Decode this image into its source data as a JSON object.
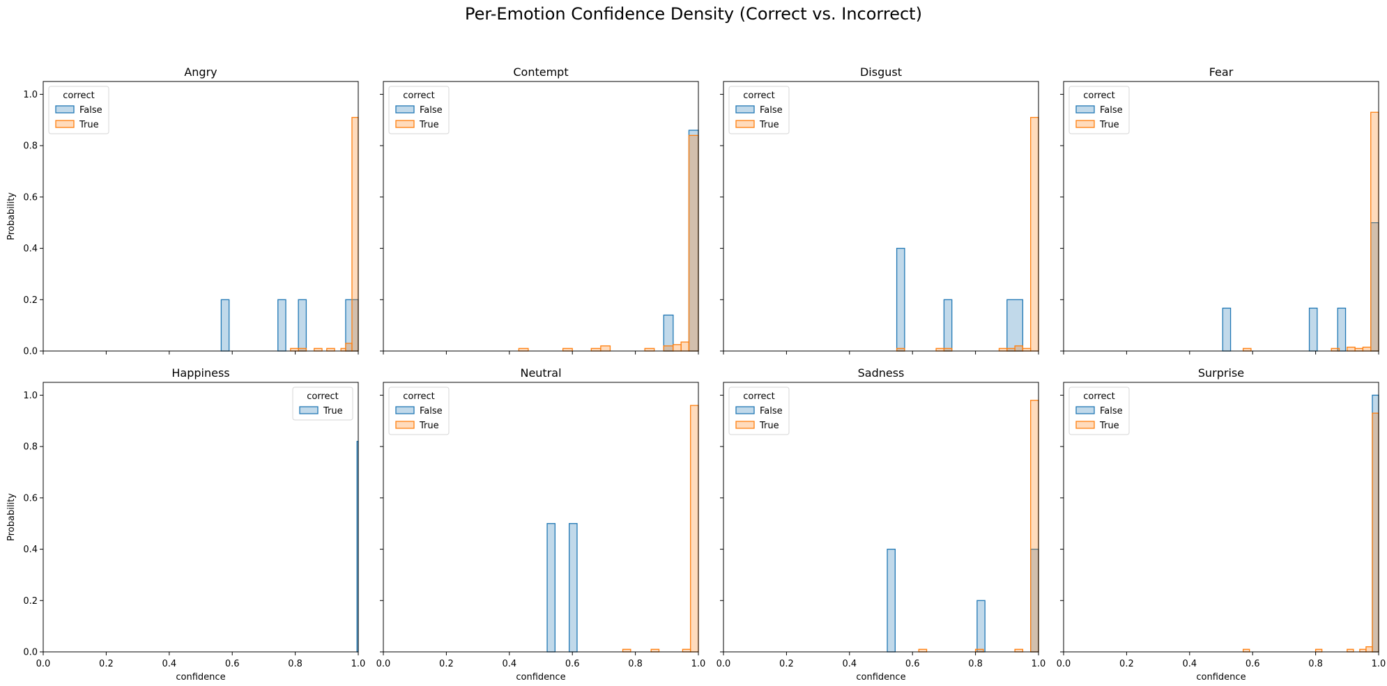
{
  "figure": {
    "title": "Per-Emotion Confidence Density (Correct vs. Incorrect)"
  },
  "colors": {
    "False": "#1f77b4",
    "True": "#ff7f0e"
  },
  "chart_data": [
    {
      "type": "histogram-step",
      "title": "Angry",
      "xlabel": "",
      "ylabel": "Probability",
      "xlim": [
        0,
        1
      ],
      "ylim": [
        0,
        1.05
      ],
      "xticks": [],
      "yticks": [
        "0.0",
        "0.2",
        "0.4",
        "0.6",
        "0.8",
        "1.0"
      ],
      "legend": {
        "title": "correct",
        "position": "upper-left",
        "entries": [
          "False",
          "True"
        ]
      },
      "series": [
        {
          "name": "False",
          "bins": [
            [
              0.565,
              0.59,
              0.2
            ],
            [
              0.745,
              0.77,
              0.2
            ],
            [
              0.81,
              0.835,
              0.2
            ],
            [
              0.96,
              1.0,
              0.2
            ]
          ]
        },
        {
          "name": "True",
          "bins": [
            [
              0.785,
              0.81,
              0.01
            ],
            [
              0.81,
              0.835,
              0.01
            ],
            [
              0.86,
              0.885,
              0.01
            ],
            [
              0.9,
              0.925,
              0.01
            ],
            [
              0.945,
              0.96,
              0.01
            ],
            [
              0.96,
              0.98,
              0.03
            ],
            [
              0.98,
              1.0,
              0.91
            ]
          ]
        }
      ]
    },
    {
      "type": "histogram-step",
      "title": "Contempt",
      "xlabel": "",
      "ylabel": "",
      "xlim": [
        0,
        1
      ],
      "ylim": [
        0,
        1.05
      ],
      "xticks": [],
      "yticks": [],
      "legend": {
        "title": "correct",
        "position": "upper-left",
        "entries": [
          "False",
          "True"
        ]
      },
      "series": [
        {
          "name": "False",
          "bins": [
            [
              0.89,
              0.92,
              0.14
            ],
            [
              0.97,
              1.0,
              0.86
            ]
          ]
        },
        {
          "name": "True",
          "bins": [
            [
              0.43,
              0.46,
              0.01
            ],
            [
              0.57,
              0.6,
              0.01
            ],
            [
              0.66,
              0.69,
              0.01
            ],
            [
              0.69,
              0.72,
              0.02
            ],
            [
              0.83,
              0.86,
              0.01
            ],
            [
              0.89,
              0.92,
              0.02
            ],
            [
              0.92,
              0.945,
              0.025
            ],
            [
              0.945,
              0.97,
              0.035
            ],
            [
              0.97,
              1.0,
              0.84
            ]
          ]
        }
      ]
    },
    {
      "type": "histogram-step",
      "title": "Disgust",
      "xlabel": "",
      "ylabel": "",
      "xlim": [
        0,
        1
      ],
      "ylim": [
        0,
        1.05
      ],
      "xticks": [],
      "yticks": [],
      "legend": {
        "title": "correct",
        "position": "upper-left",
        "entries": [
          "False",
          "True"
        ]
      },
      "series": [
        {
          "name": "False",
          "bins": [
            [
              0.55,
              0.575,
              0.4
            ],
            [
              0.7,
              0.725,
              0.2
            ],
            [
              0.9,
              0.95,
              0.2
            ]
          ]
        },
        {
          "name": "True",
          "bins": [
            [
              0.55,
              0.575,
              0.01
            ],
            [
              0.675,
              0.7,
              0.01
            ],
            [
              0.7,
              0.725,
              0.01
            ],
            [
              0.875,
              0.9,
              0.01
            ],
            [
              0.9,
              0.925,
              0.01
            ],
            [
              0.925,
              0.95,
              0.02
            ],
            [
              0.95,
              0.975,
              0.01
            ],
            [
              0.975,
              1.0,
              0.91
            ]
          ]
        }
      ]
    },
    {
      "type": "histogram-step",
      "title": "Fear",
      "xlabel": "",
      "ylabel": "",
      "xlim": [
        0,
        1
      ],
      "ylim": [
        0,
        1.05
      ],
      "xticks": [],
      "yticks": [],
      "legend": {
        "title": "correct",
        "position": "upper-left",
        "entries": [
          "False",
          "True"
        ]
      },
      "series": [
        {
          "name": "False",
          "bins": [
            [
              0.505,
              0.53,
              0.167
            ],
            [
              0.78,
              0.805,
              0.167
            ],
            [
              0.87,
              0.895,
              0.167
            ],
            [
              0.975,
              1.0,
              0.5
            ]
          ]
        },
        {
          "name": "True",
          "bins": [
            [
              0.57,
              0.595,
              0.01
            ],
            [
              0.85,
              0.875,
              0.01
            ],
            [
              0.9,
              0.925,
              0.015
            ],
            [
              0.925,
              0.95,
              0.01
            ],
            [
              0.95,
              0.975,
              0.015
            ],
            [
              0.975,
              1.0,
              0.93
            ]
          ]
        }
      ]
    },
    {
      "type": "histogram-step",
      "title": "Happiness",
      "xlabel": "confidence",
      "ylabel": "Probability",
      "xlim": [
        0,
        1
      ],
      "ylim": [
        0,
        1.05
      ],
      "xticks": [
        "0.0",
        "0.2",
        "0.4",
        "0.6",
        "0.8",
        "1.0"
      ],
      "yticks": [
        "0.0",
        "0.2",
        "0.4",
        "0.6",
        "0.8",
        "1.0"
      ],
      "legend": {
        "title": "correct",
        "position": "upper-right",
        "entries": [
          "True"
        ]
      },
      "series": [
        {
          "name": "True",
          "color_key": "False",
          "bins": [
            [
              0.996,
              1.0,
              0.82
            ]
          ]
        }
      ]
    },
    {
      "type": "histogram-step",
      "title": "Neutral",
      "xlabel": "confidence",
      "ylabel": "",
      "xlim": [
        0,
        1
      ],
      "ylim": [
        0,
        1.05
      ],
      "xticks": [
        "0.0",
        "0.2",
        "0.4",
        "0.6",
        "0.8",
        "1.0"
      ],
      "yticks": [],
      "legend": {
        "title": "correct",
        "position": "upper-left",
        "entries": [
          "False",
          "True"
        ]
      },
      "series": [
        {
          "name": "False",
          "bins": [
            [
              0.52,
              0.545,
              0.5
            ],
            [
              0.59,
              0.615,
              0.5
            ]
          ]
        },
        {
          "name": "True",
          "bins": [
            [
              0.76,
              0.785,
              0.01
            ],
            [
              0.85,
              0.875,
              0.01
            ],
            [
              0.95,
              0.975,
              0.01
            ],
            [
              0.975,
              1.0,
              0.96
            ]
          ]
        }
      ]
    },
    {
      "type": "histogram-step",
      "title": "Sadness",
      "xlabel": "confidence",
      "ylabel": "",
      "xlim": [
        0,
        1
      ],
      "ylim": [
        0,
        1.05
      ],
      "xticks": [
        "0.0",
        "0.2",
        "0.4",
        "0.6",
        "0.8",
        "1.0"
      ],
      "yticks": [],
      "legend": {
        "title": "correct",
        "position": "upper-left",
        "entries": [
          "False",
          "True"
        ]
      },
      "series": [
        {
          "name": "False",
          "bins": [
            [
              0.52,
              0.545,
              0.4
            ],
            [
              0.805,
              0.83,
              0.2
            ],
            [
              0.975,
              1.0,
              0.4
            ]
          ]
        },
        {
          "name": "True",
          "bins": [
            [
              0.62,
              0.645,
              0.01
            ],
            [
              0.8,
              0.825,
              0.01
            ],
            [
              0.925,
              0.95,
              0.01
            ],
            [
              0.975,
              1.0,
              0.98
            ]
          ]
        }
      ]
    },
    {
      "type": "histogram-step",
      "title": "Surprise",
      "xlabel": "confidence",
      "ylabel": "",
      "xlim": [
        0,
        1
      ],
      "ylim": [
        0,
        1.05
      ],
      "xticks": [
        "0.0",
        "0.2",
        "0.4",
        "0.6",
        "0.8",
        "1.0"
      ],
      "yticks": [],
      "legend": {
        "title": "correct",
        "position": "upper-left",
        "entries": [
          "False",
          "True"
        ]
      },
      "series": [
        {
          "name": "False",
          "bins": [
            [
              0.98,
              1.0,
              1.0
            ]
          ]
        },
        {
          "name": "True",
          "bins": [
            [
              0.57,
              0.59,
              0.01
            ],
            [
              0.8,
              0.82,
              0.01
            ],
            [
              0.9,
              0.92,
              0.01
            ],
            [
              0.94,
              0.96,
              0.01
            ],
            [
              0.96,
              0.98,
              0.02
            ],
            [
              0.98,
              1.0,
              0.93
            ]
          ]
        }
      ]
    }
  ]
}
